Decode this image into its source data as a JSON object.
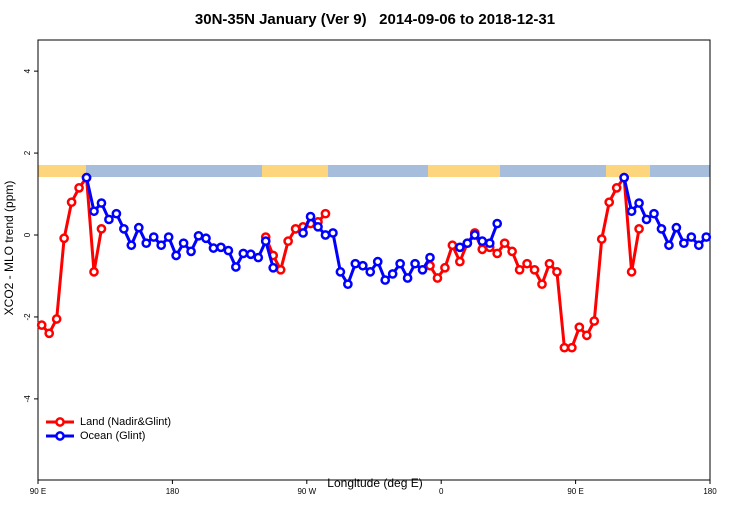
{
  "chart_data": {
    "type": "line",
    "title": "30N-35N January (Ver 9)   2014-09-06 to 2018-12-31",
    "x_label": "Longitude (deg E)",
    "y_label": "XCO2 - MLO trend (ppm)",
    "x": [
      92.5,
      97.5,
      102.5,
      107.5,
      112.5,
      117.5,
      122.5,
      127.5,
      132.5,
      137.5,
      142.5,
      147.5,
      152.5,
      157.5,
      162.5,
      167.5,
      172.5,
      177.5,
      182.5,
      187.5,
      192.5,
      197.5,
      202.5,
      207.5,
      212.5,
      217.5,
      222.5,
      227.5,
      232.5,
      237.5,
      242.5,
      247.5,
      252.5,
      257.5,
      262.5,
      267.5,
      272.5,
      277.5,
      282.5,
      287.5,
      292.5,
      297.5,
      302.5,
      307.5,
      312.5,
      317.5,
      322.5,
      327.5,
      332.5,
      337.5,
      342.5,
      347.5,
      352.5,
      357.5,
      362.5,
      367.5,
      372.5,
      377.5,
      382.5,
      387.5,
      392.5,
      397.5,
      402.5,
      407.5,
      412.5,
      417.5,
      422.5,
      427.5,
      432.5,
      437.5,
      442.5,
      447.5,
      452.5,
      457.5,
      462.5,
      467.5,
      472.5,
      477.5,
      482.5,
      487.5,
      492.5,
      497.5,
      502.5,
      507.5,
      512.5,
      517.5,
      522.5,
      527.5,
      532.5,
      537.5
    ],
    "series": [
      {
        "name": "Land (Nadir&Glint)",
        "color": "#ff0000",
        "values": [
          -2.2,
          -2.4,
          -2.05,
          -0.08,
          0.8,
          1.15,
          1.4,
          -0.9,
          0.15,
          null,
          null,
          null,
          null,
          null,
          null,
          null,
          null,
          null,
          null,
          null,
          null,
          null,
          null,
          null,
          null,
          null,
          null,
          null,
          null,
          null,
          -0.05,
          -0.5,
          -0.85,
          -0.15,
          0.15,
          0.2,
          0.28,
          0.32,
          0.52,
          null,
          null,
          null,
          null,
          null,
          null,
          null,
          null,
          null,
          null,
          null,
          null,
          null,
          -0.75,
          -1.05,
          -0.8,
          -0.25,
          -0.65,
          -0.2,
          0.05,
          -0.35,
          -0.3,
          -0.45,
          -0.2,
          -0.4,
          -0.85,
          -0.7,
          -0.85,
          -1.2,
          -0.7,
          -0.9,
          -2.75,
          -2.75,
          -2.25,
          -2.45,
          -2.1,
          -0.1,
          0.8,
          1.15,
          1.4,
          -0.9,
          0.15,
          null,
          null,
          null,
          null,
          null,
          null,
          null,
          null,
          null
        ]
      },
      {
        "name": "Ocean (Glint)",
        "color": "#0000ff",
        "values": [
          null,
          null,
          null,
          null,
          null,
          null,
          1.4,
          0.58,
          0.78,
          0.38,
          0.52,
          0.15,
          -0.25,
          0.18,
          -0.2,
          -0.05,
          -0.25,
          -0.05,
          -0.5,
          -0.2,
          -0.4,
          -0.02,
          -0.08,
          -0.32,
          -0.3,
          -0.38,
          -0.78,
          -0.45,
          -0.47,
          -0.55,
          -0.15,
          -0.8,
          null,
          null,
          null,
          0.05,
          0.45,
          0.2,
          0.0,
          0.05,
          -0.9,
          -1.2,
          -0.7,
          -0.75,
          -0.9,
          -0.65,
          -1.1,
          -0.95,
          -0.7,
          -1.05,
          -0.7,
          -0.85,
          -0.55,
          null,
          null,
          null,
          -0.3,
          -0.2,
          0.0,
          -0.15,
          -0.2,
          0.28,
          null,
          null,
          null,
          null,
          null,
          null,
          null,
          null,
          null,
          null,
          null,
          null,
          null,
          null,
          null,
          null,
          1.4,
          0.58,
          0.78,
          0.38,
          0.52,
          0.15,
          -0.25,
          0.18,
          -0.2,
          -0.05,
          -0.25,
          -0.05
        ]
      }
    ],
    "xlim": [
      90,
      540
    ],
    "xticks": [
      {
        "value": 90,
        "label": "90 E"
      },
      {
        "value": 180,
        "label": "180"
      },
      {
        "value": 270,
        "label": "90 W"
      },
      {
        "value": 360,
        "label": "0"
      },
      {
        "value": 450,
        "label": "90 E"
      },
      {
        "value": 540,
        "label": "180"
      }
    ],
    "ylim": [
      -5.98,
      4.76
    ],
    "yticks": [
      -4,
      -2,
      0,
      2,
      4
    ],
    "legend": "bottom-left"
  }
}
